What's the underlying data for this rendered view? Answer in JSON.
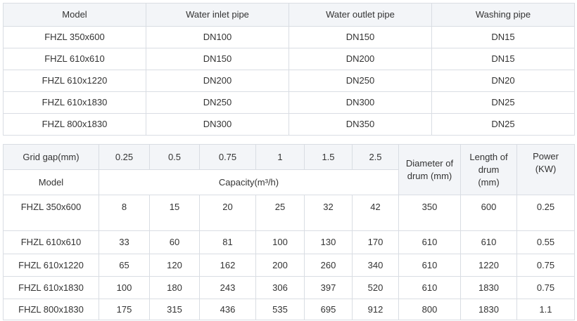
{
  "table1": {
    "headers": [
      "Model",
      "Water inlet pipe",
      "Water outlet pipe",
      "Washing pipe"
    ],
    "rows": [
      [
        "FHZL 350x600",
        "DN100",
        "DN150",
        "DN15"
      ],
      [
        "FHZL 610x610",
        "DN150",
        "DN200",
        "DN15"
      ],
      [
        "FHZL 610x1220",
        "DN200",
        "DN250",
        "DN20"
      ],
      [
        "FHZL 610x1830",
        "DN250",
        "DN300",
        "DN25"
      ],
      [
        "FHZL 800x1830",
        "DN300",
        "DN350",
        "DN25"
      ]
    ]
  },
  "table2": {
    "grid_gap_label": "Grid gap(mm)",
    "grid_gaps": [
      "0.25",
      "0.5",
      "0.75",
      "1",
      "1.5",
      "2.5"
    ],
    "diameter_label": "Diameter of drum (mm)",
    "length_label": "Length of drum (mm)",
    "power_label": "Power (KW)",
    "model_label": "Model",
    "capacity_label": "Capacity(m³/h)",
    "rows": [
      [
        "FHZL 350x600",
        "8",
        "15",
        "20",
        "25",
        "32",
        "42",
        "350",
        "600",
        "0.25"
      ],
      [
        "FHZL 610x610",
        "33",
        "60",
        "81",
        "100",
        "130",
        "170",
        "610",
        "610",
        "0.55"
      ],
      [
        "FHZL 610x1220",
        "65",
        "120",
        "162",
        "200",
        "260",
        "340",
        "610",
        "1220",
        "0.75"
      ],
      [
        "FHZL 610x1830",
        "100",
        "180",
        "243",
        "306",
        "397",
        "520",
        "610",
        "1830",
        "0.75"
      ],
      [
        "FHZL 800x1830",
        "175",
        "315",
        "436",
        "535",
        "695",
        "912",
        "800",
        "1830",
        "1.1"
      ]
    ]
  }
}
